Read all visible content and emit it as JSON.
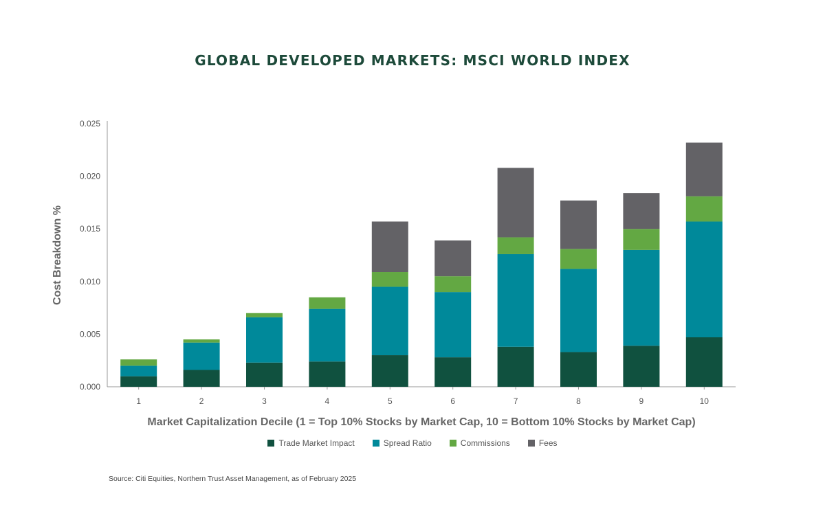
{
  "chart_data": {
    "type": "bar",
    "stacked": true,
    "title": "GLOBAL DEVELOPED MARKETS: MSCI WORLD INDEX",
    "xlabel": "Market Capitalization Decile (1 = Top 10% Stocks by Market Cap, 10 = Bottom 10% Stocks by Market Cap)",
    "ylabel": "Cost Breakdown %",
    "ylim": [
      0,
      0.025
    ],
    "yticks": [
      "0.000",
      "0.005",
      "0.010",
      "0.015",
      "0.020",
      "0.025"
    ],
    "categories": [
      "1",
      "2",
      "3",
      "4",
      "5",
      "6",
      "7",
      "8",
      "9",
      "10"
    ],
    "series": [
      {
        "name": "Trade Market Impact",
        "color": "#10513f",
        "values": [
          0.001,
          0.0016,
          0.0023,
          0.0024,
          0.003,
          0.0028,
          0.0038,
          0.0033,
          0.0039,
          0.0047
        ]
      },
      {
        "name": "Spread Ratio",
        "color": "#00899a",
        "values": [
          0.001,
          0.0026,
          0.0043,
          0.005,
          0.0065,
          0.0062,
          0.0088,
          0.0079,
          0.0091,
          0.011
        ]
      },
      {
        "name": "Commissions",
        "color": "#63a843",
        "values": [
          0.0006,
          0.0003,
          0.0004,
          0.0011,
          0.0014,
          0.0015,
          0.0016,
          0.0019,
          0.002,
          0.0024
        ]
      },
      {
        "name": "Fees",
        "color": "#636266",
        "values": [
          0,
          0,
          0,
          0,
          0.0048,
          0.0034,
          0.0066,
          0.0046,
          0.0034,
          0.0051
        ]
      }
    ],
    "legend_position": "bottom",
    "grid": false
  },
  "source_note": "Source:  Citi Equities, Northern Trust Asset Management, as of February 2025"
}
